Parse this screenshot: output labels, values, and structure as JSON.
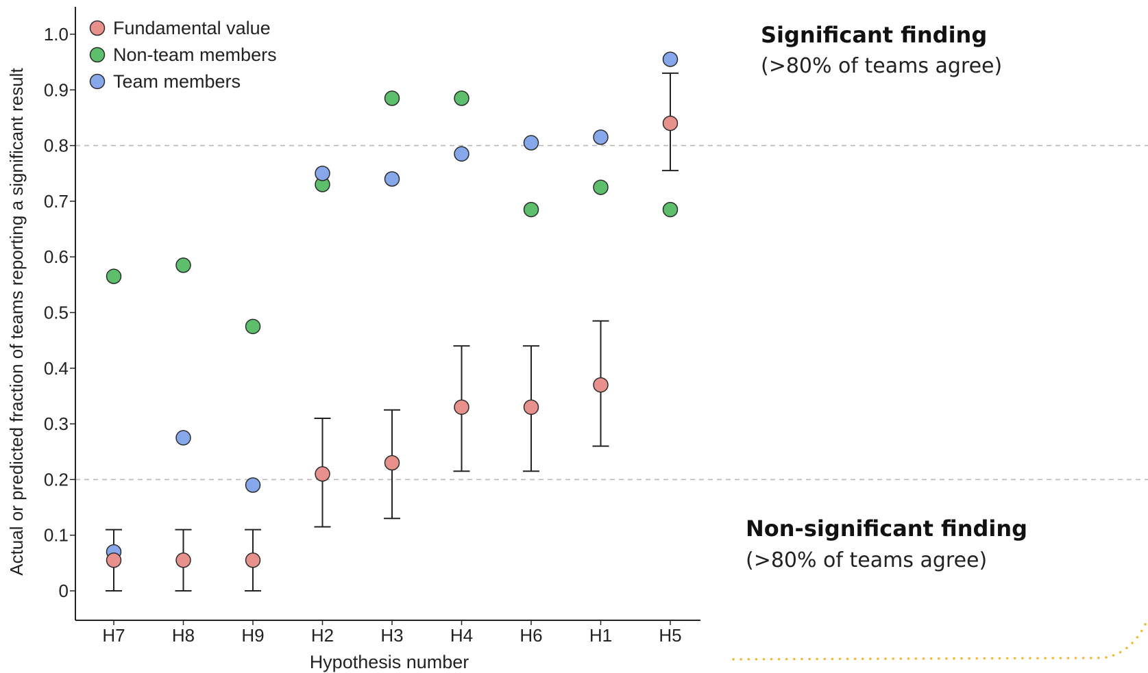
{
  "chart_data": {
    "type": "scatter",
    "xlabel": "Hypothesis number",
    "ylabel": "Actual or predicted fraction of teams reporting a significant result",
    "categories": [
      "H7",
      "H8",
      "H9",
      "H2",
      "H3",
      "H4",
      "H6",
      "H1",
      "H5"
    ],
    "ylim": [
      0,
      1.0
    ],
    "yticks": [
      "0",
      "0.1",
      "0.2",
      "0.3",
      "0.4",
      "0.5",
      "0.6",
      "0.7",
      "0.8",
      "0.9",
      "1.0"
    ],
    "legend_position": "top-left",
    "reference_lines": [
      0.2,
      0.8
    ],
    "series": [
      {
        "name": "Fundamental value",
        "color": "#e8908c",
        "values": [
          0.055,
          0.055,
          0.055,
          0.21,
          0.23,
          0.33,
          0.33,
          0.37,
          0.84
        ],
        "error_low": [
          0.0,
          0.0,
          0.0,
          0.115,
          0.13,
          0.215,
          0.215,
          0.26,
          0.755
        ],
        "error_high": [
          0.11,
          0.11,
          0.11,
          0.31,
          0.325,
          0.44,
          0.44,
          0.485,
          0.93
        ]
      },
      {
        "name": "Non-team members",
        "color": "#5dbe6c",
        "values": [
          0.565,
          0.585,
          0.475,
          0.73,
          0.885,
          0.885,
          0.685,
          0.725,
          0.685
        ]
      },
      {
        "name": "Team members",
        "color": "#86a8ea",
        "values": [
          0.07,
          0.275,
          0.19,
          0.75,
          0.74,
          0.785,
          0.805,
          0.815,
          0.955
        ]
      }
    ],
    "annotations": [
      {
        "title": "Significant finding",
        "subtitle": "(>80% of teams agree)"
      },
      {
        "title": "Non-significant finding",
        "subtitle": "(>80% of teams agree)"
      }
    ]
  },
  "colors": {
    "axis": "#222222",
    "gridline": "#b8b8b8",
    "errorbar": "#222222",
    "decoration": "#f2b833"
  }
}
